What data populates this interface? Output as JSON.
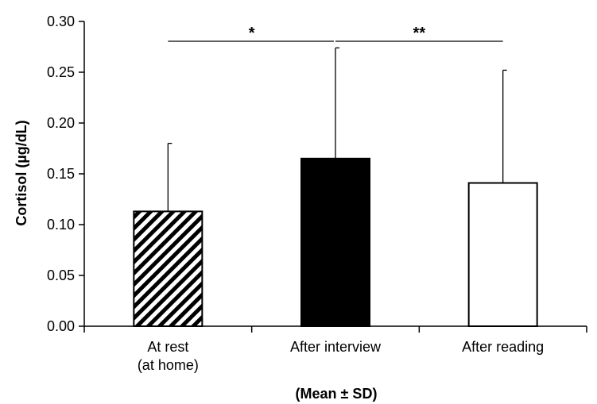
{
  "chart_data": {
    "type": "bar",
    "categories": [
      [
        "At rest",
        "(at home)"
      ],
      [
        "After interview"
      ],
      [
        "After reading"
      ]
    ],
    "values": [
      0.113,
      0.165,
      0.141
    ],
    "errors": [
      0.067,
      0.109,
      0.111
    ],
    "patterns": [
      "hatched",
      "solid",
      "open"
    ],
    "ylabel": "Cortisol (µg/dL)",
    "xlabel": "(Mean ± SD)",
    "ylim": [
      0,
      0.3
    ],
    "yticks": [
      0.0,
      0.05,
      0.1,
      0.15,
      0.2,
      0.25,
      0.3
    ],
    "ytick_labels": [
      "0.00",
      "0.05",
      "0.10",
      "0.15",
      "0.20",
      "0.25",
      "0.30"
    ],
    "significance": [
      {
        "from": 0,
        "to": 1,
        "label": "*"
      },
      {
        "from": 1,
        "to": 2,
        "label": "**"
      }
    ],
    "grid": false,
    "legend": "none"
  }
}
